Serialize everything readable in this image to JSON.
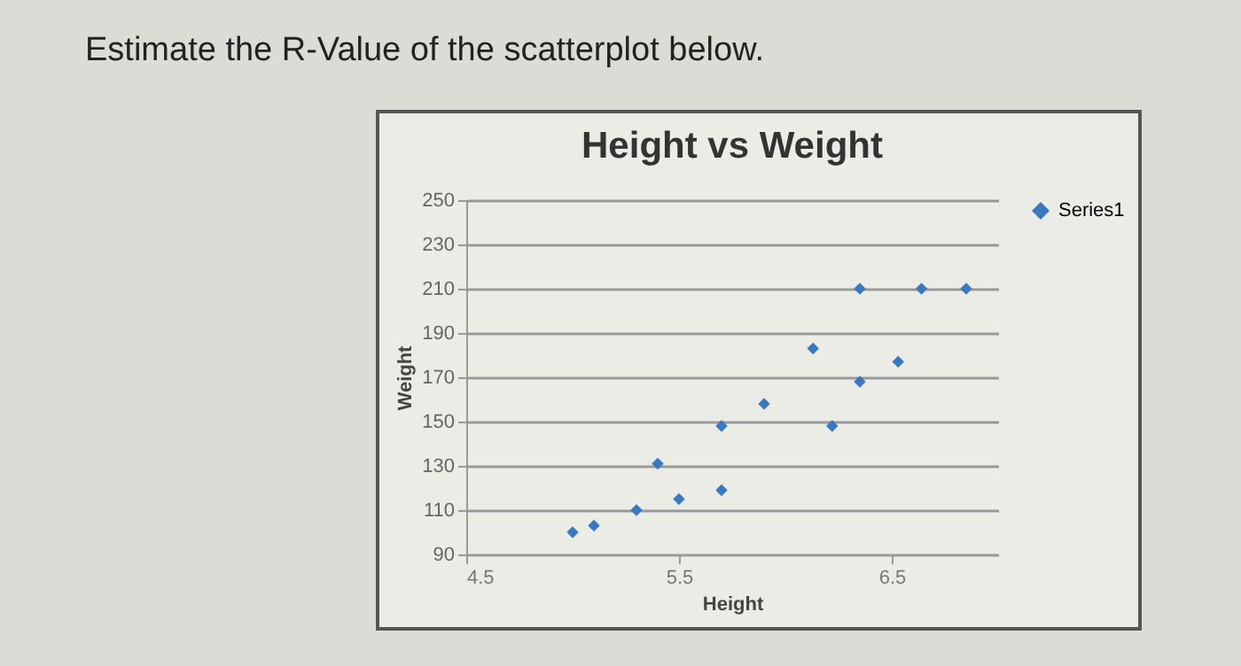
{
  "chart_data": {
    "type": "scatter",
    "title": "Height vs Weight",
    "xlabel": "Height",
    "ylabel": "Weight",
    "annotations": [
      "Estimate the R-Value of the scatterplot below."
    ],
    "x": [
      5.0,
      5.1,
      5.3,
      5.4,
      5.5,
      5.7,
      5.7,
      5.9,
      6.13,
      6.22,
      6.35,
      6.35,
      6.53,
      6.64,
      6.85
    ],
    "series": [
      {
        "name": "Series1",
        "color": "#3a78c0",
        "values": [
          100,
          103,
          110,
          131,
          115,
          148,
          119,
          158,
          183,
          148,
          210,
          168,
          177,
          210,
          210
        ]
      }
    ],
    "xlim": [
      4.5,
      7
    ],
    "xticks": [
      4.5,
      5.5,
      6.5
    ],
    "ylim": [
      90,
      250
    ],
    "yticks": [
      90,
      110,
      130,
      150,
      170,
      190,
      210,
      230,
      250
    ],
    "grid": "y",
    "legend": "right",
    "marker": "diamond"
  }
}
